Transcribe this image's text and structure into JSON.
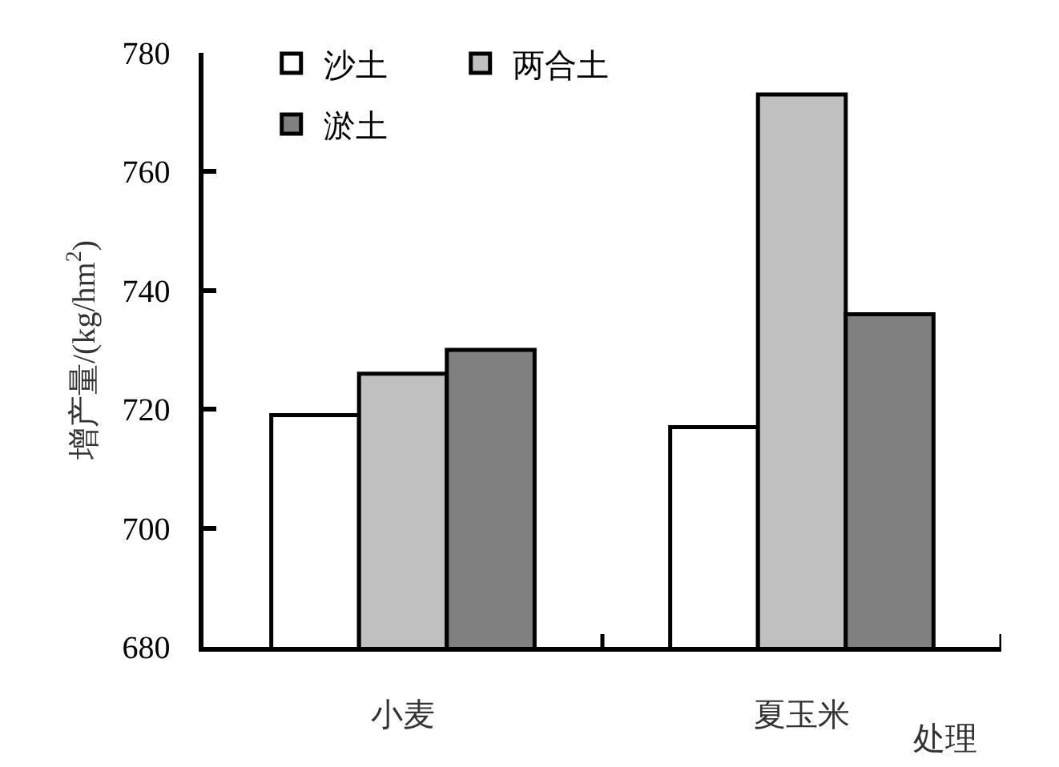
{
  "chart_data": {
    "type": "bar",
    "ylabel": "增产量/(kg/hm$^{2}$)",
    "xlabel": "处理",
    "categories": [
      "小麦",
      "夏玉米"
    ],
    "series": [
      {
        "name": "沙土",
        "color": "#ffffff",
        "values": [
          719,
          717
        ]
      },
      {
        "name": "两合土",
        "color": "#c0c0c0",
        "values": [
          726,
          773
        ]
      },
      {
        "name": "淤土",
        "color": "#808080",
        "values": [
          730,
          736
        ]
      }
    ],
    "ylim": [
      680,
      780
    ],
    "yticks": [
      680,
      700,
      720,
      740,
      760,
      780
    ],
    "legend": "top left"
  }
}
